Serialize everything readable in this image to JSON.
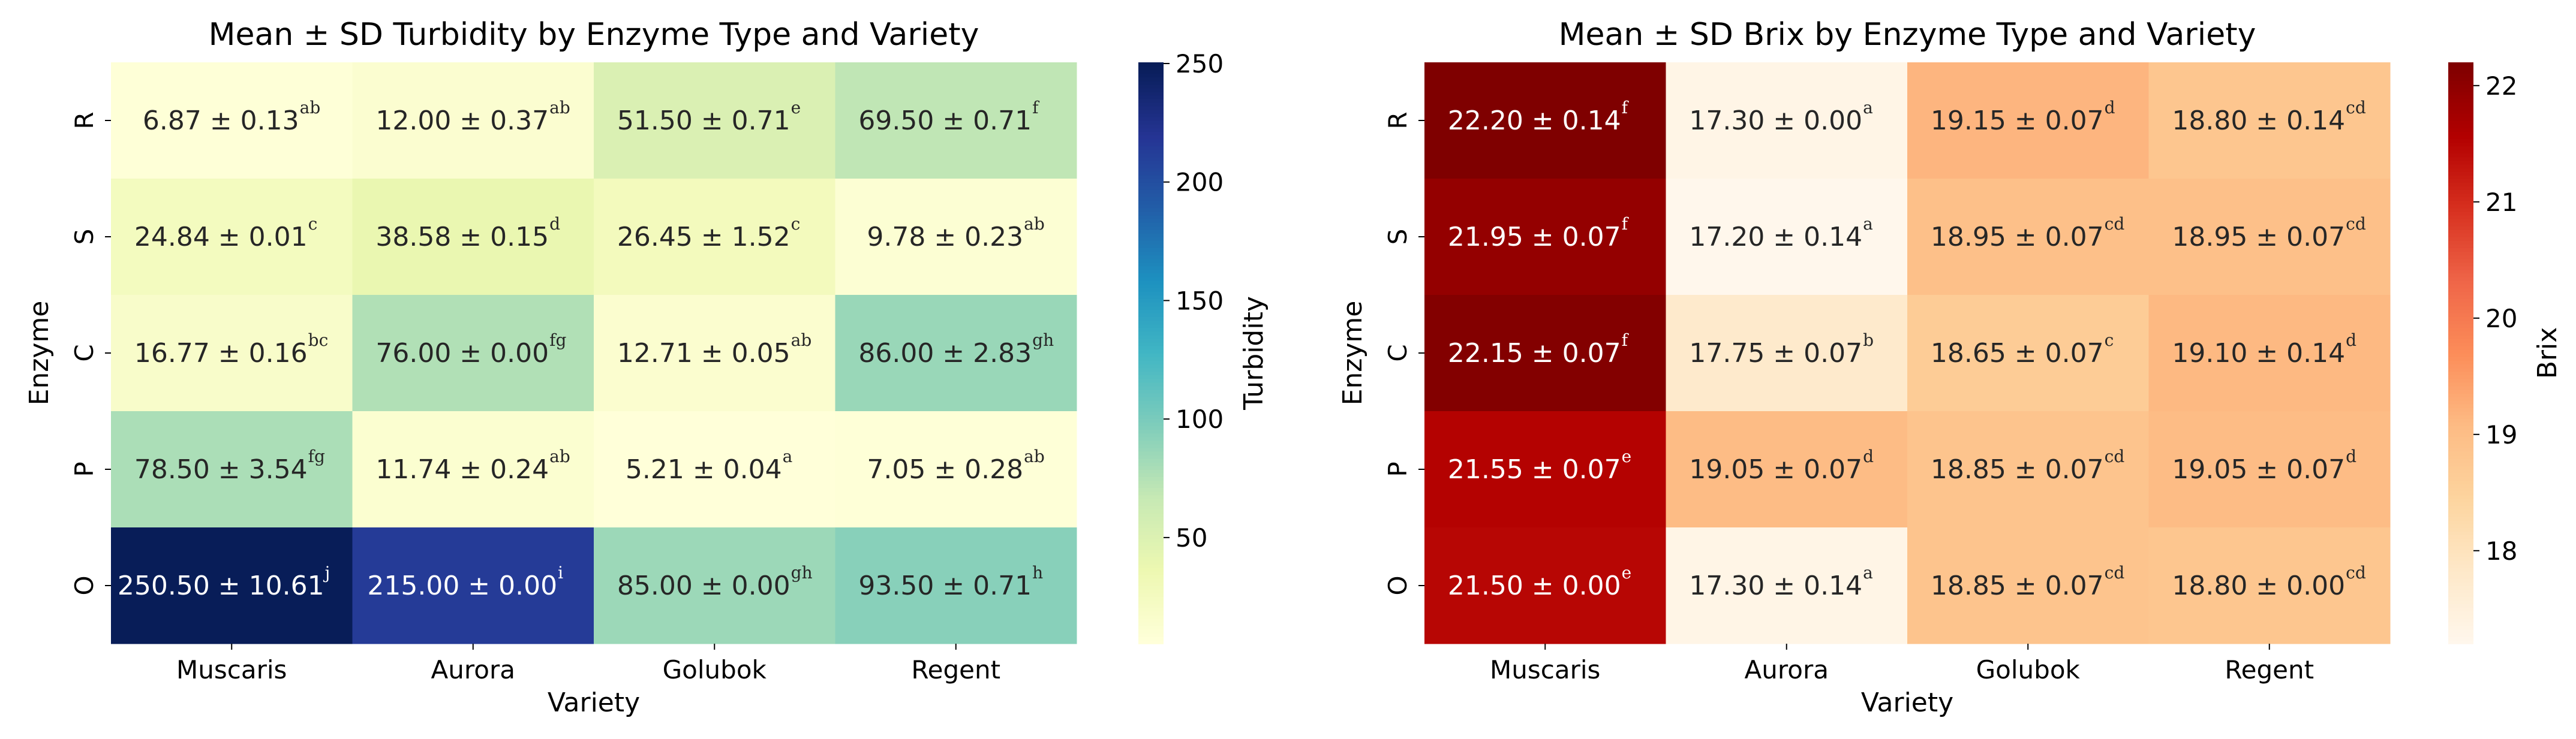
{
  "chart_data": [
    {
      "type": "heatmap",
      "title": "Mean ± SD Turbidity by Enzyme Type and Variety",
      "xlabel": "Variety",
      "ylabel": "Enzyme",
      "x_categories": [
        "Muscaris",
        "Aurora",
        "Golubok",
        "Regent"
      ],
      "y_categories": [
        "R",
        "S",
        "C",
        "P",
        "O"
      ],
      "colormap": "YlGnBu",
      "colorbar": {
        "label": "Turbidity",
        "vmin": 5.21,
        "vmax": 250.5,
        "ticks": [
          50,
          100,
          150,
          200,
          250
        ]
      },
      "values": [
        [
          6.87,
          12.0,
          51.5,
          69.5
        ],
        [
          24.84,
          38.58,
          26.45,
          9.78
        ],
        [
          16.77,
          76.0,
          12.71,
          86.0
        ],
        [
          78.5,
          11.74,
          5.21,
          7.05
        ],
        [
          250.5,
          215.0,
          85.0,
          93.5
        ]
      ],
      "labels": [
        [
          "6.87 ± 0.13",
          "12.00 ± 0.37",
          "51.50 ± 0.71",
          "69.50 ± 0.71"
        ],
        [
          "24.84 ± 0.01",
          "38.58 ± 0.15",
          "26.45 ± 1.52",
          "9.78 ± 0.23"
        ],
        [
          "16.77 ± 0.16",
          "76.00 ± 0.00",
          "12.71 ± 0.05",
          "86.00 ± 2.83"
        ],
        [
          "78.50 ± 3.54",
          "11.74 ± 0.24",
          "5.21 ± 0.04",
          "7.05 ± 0.28"
        ],
        [
          "250.50 ± 10.61",
          "215.00 ± 0.00",
          "85.00 ± 0.00",
          "93.50 ± 0.71"
        ]
      ],
      "letters": [
        [
          "ab",
          "ab",
          "e",
          "f"
        ],
        [
          "c",
          "d",
          "c",
          "ab"
        ],
        [
          "bc",
          "fg",
          "ab",
          "gh"
        ],
        [
          "fg",
          "ab",
          "a",
          "ab"
        ],
        [
          "j",
          "i",
          "gh",
          "h"
        ]
      ]
    },
    {
      "type": "heatmap",
      "title": "Mean ± SD Brix by Enzyme Type and Variety",
      "xlabel": "Variety",
      "ylabel": "Enzyme",
      "x_categories": [
        "Muscaris",
        "Aurora",
        "Golubok",
        "Regent"
      ],
      "y_categories": [
        "R",
        "S",
        "C",
        "P",
        "O"
      ],
      "colormap": "OrRd",
      "colorbar": {
        "label": "Brix",
        "vmin": 17.2,
        "vmax": 22.2,
        "ticks": [
          18,
          19,
          20,
          21,
          22
        ]
      },
      "values": [
        [
          22.2,
          17.3,
          19.15,
          18.8
        ],
        [
          21.95,
          17.2,
          18.95,
          18.95
        ],
        [
          22.15,
          17.75,
          18.65,
          19.1
        ],
        [
          21.55,
          19.05,
          18.85,
          19.05
        ],
        [
          21.5,
          17.3,
          18.85,
          18.8
        ]
      ],
      "labels": [
        [
          "22.20 ± 0.14",
          "17.30 ± 0.00",
          "19.15 ± 0.07",
          "18.80 ± 0.14"
        ],
        [
          "21.95 ± 0.07",
          "17.20 ± 0.14",
          "18.95 ± 0.07",
          "18.95 ± 0.07"
        ],
        [
          "22.15 ± 0.07",
          "17.75 ± 0.07",
          "18.65 ± 0.07",
          "19.10 ± 0.14"
        ],
        [
          "21.55 ± 0.07",
          "19.05 ± 0.07",
          "18.85 ± 0.07",
          "19.05 ± 0.07"
        ],
        [
          "21.50 ± 0.00",
          "17.30 ± 0.14",
          "18.85 ± 0.07",
          "18.80 ± 0.00"
        ]
      ],
      "letters": [
        [
          "f",
          "a",
          "d",
          "cd"
        ],
        [
          "f",
          "a",
          "cd",
          "cd"
        ],
        [
          "f",
          "b",
          "c",
          "d"
        ],
        [
          "e",
          "d",
          "cd",
          "d"
        ],
        [
          "e",
          "a",
          "cd",
          "cd"
        ]
      ]
    }
  ]
}
